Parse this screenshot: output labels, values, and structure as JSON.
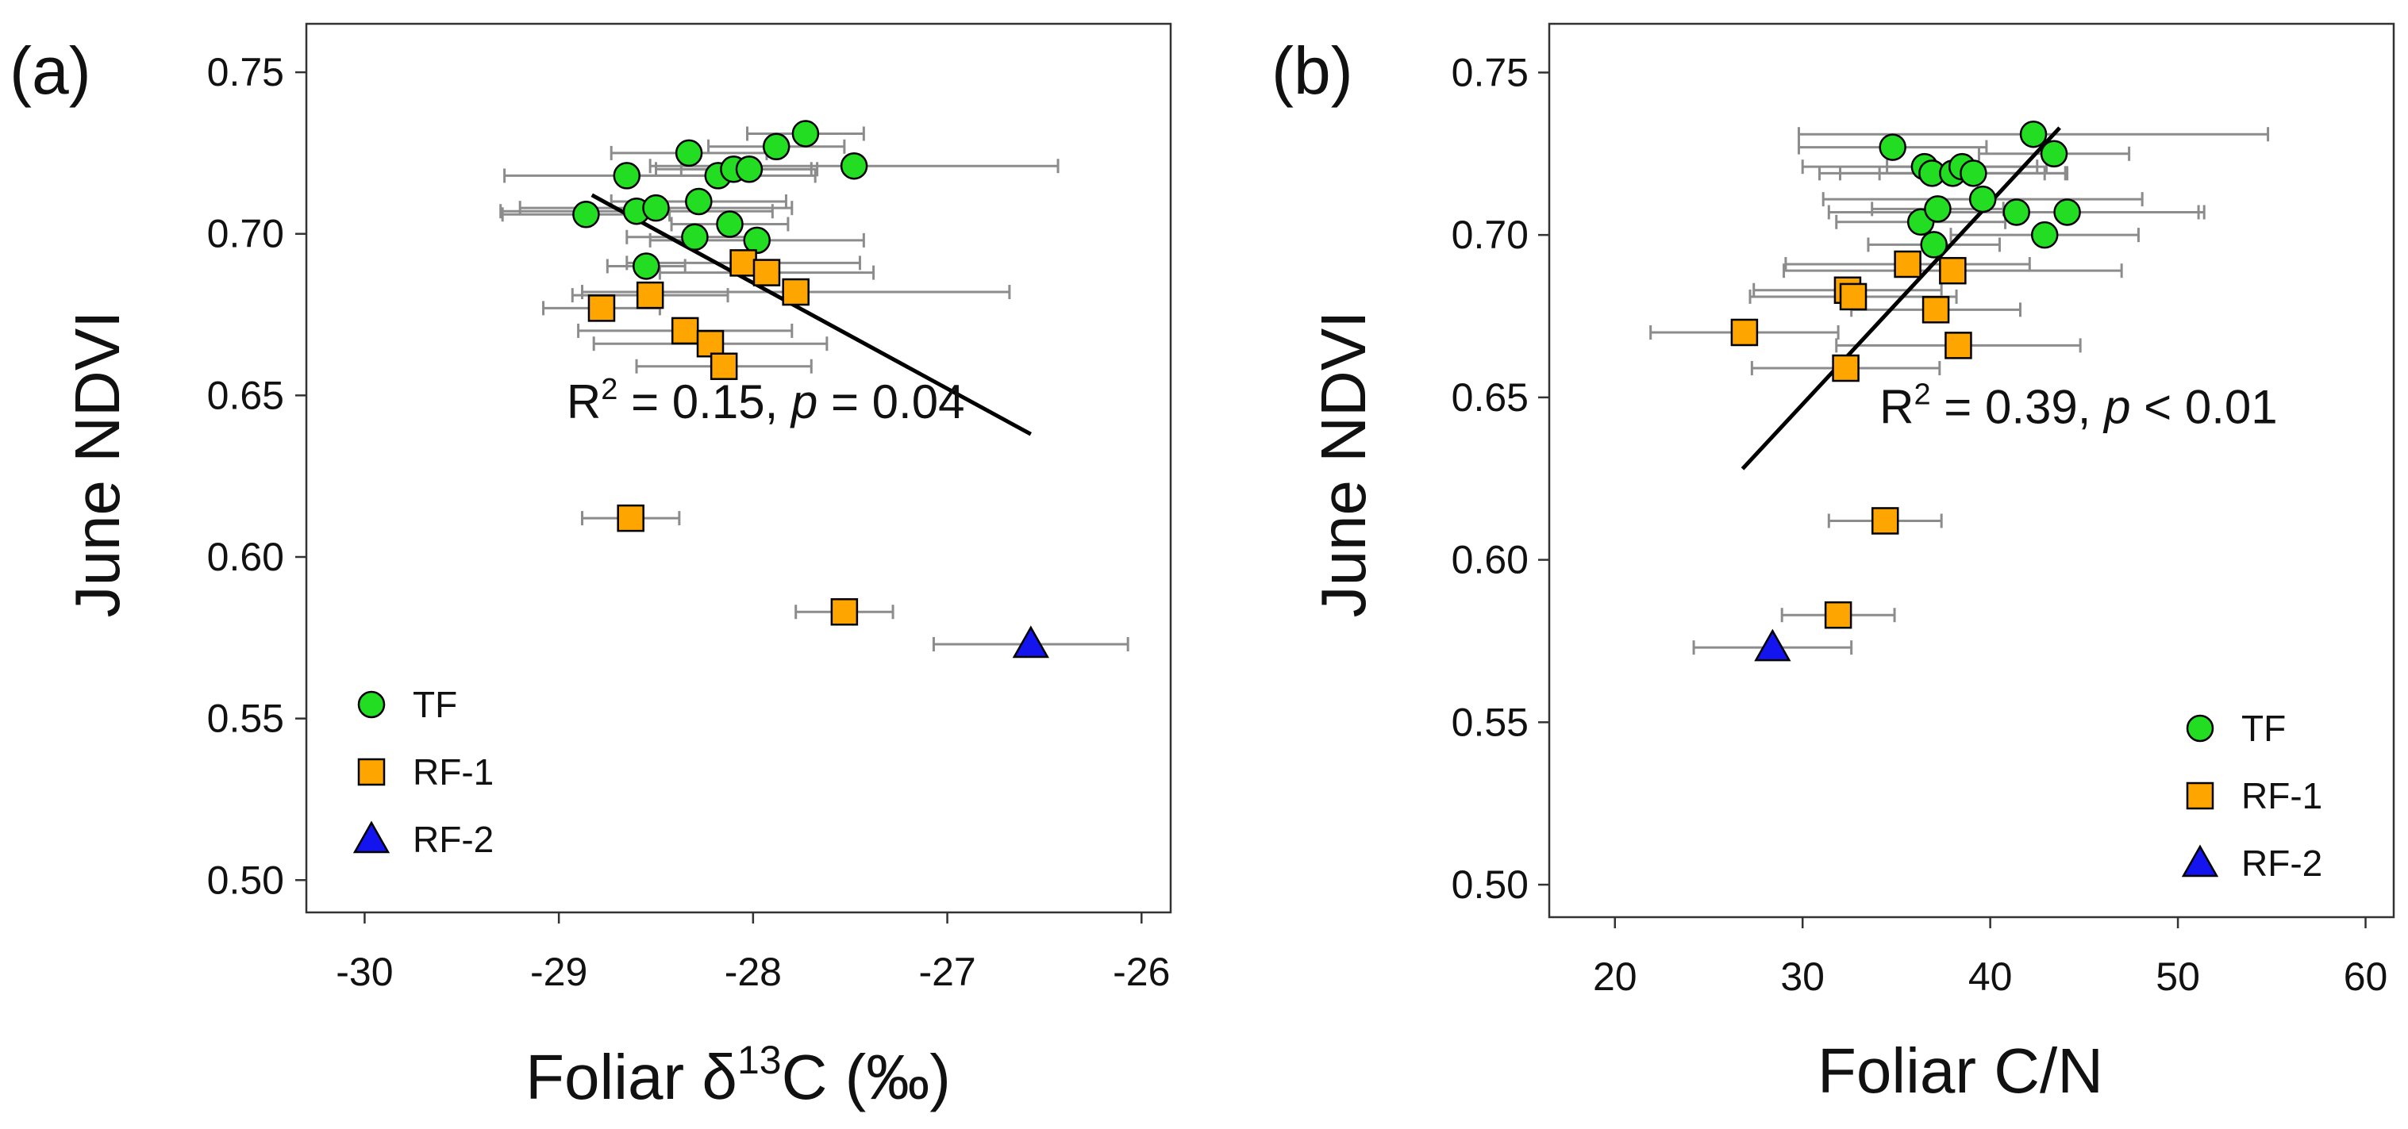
{
  "chart_data": [
    {
      "panel_label": "(a)",
      "type": "scatter",
      "xlabel": "Foliar δ¹³C (‰)",
      "xlabel_parts": {
        "before": "Foliar δ",
        "sup": "13",
        "after": "C (‰)"
      },
      "ylabel": "June NDVI",
      "xlim": [
        -30.3,
        -25.85
      ],
      "ylim": [
        0.49,
        0.765
      ],
      "xticks": [
        -30,
        -29,
        -28,
        -27,
        -26
      ],
      "xtick_labels": [
        "-30",
        "-29",
        "-28",
        "-27",
        "-26"
      ],
      "yticks": [
        0.5,
        0.55,
        0.6,
        0.65,
        0.7,
        0.75
      ],
      "ytick_labels": [
        "0.50",
        "0.55",
        "0.60",
        "0.65",
        "0.70",
        "0.75"
      ],
      "regression": {
        "x": [
          -28.83,
          -26.57
        ],
        "y": [
          0.712,
          0.638
        ]
      },
      "annotation": {
        "r2_prefix": "R",
        "r2_sup": "2",
        "r2_value": " = 0.15, ",
        "p_symbol": "p",
        "p_value": " = 0.04"
      },
      "annotation_pos": [
        -28.96,
        0.643
      ],
      "legend_position": "bottom-left",
      "series": [
        {
          "name": "TF",
          "marker": "circle",
          "color": "#22dd22",
          "points": [
            {
              "x": -28.86,
              "y": 0.706,
              "xerr": 0.43
            },
            {
              "x": -28.65,
              "y": 0.718,
              "xerr": 0.63
            },
            {
              "x": -28.6,
              "y": 0.707,
              "xerr": 0.7
            },
            {
              "x": -28.55,
              "y": 0.69,
              "xerr": 0.2
            },
            {
              "x": -28.5,
              "y": 0.708,
              "xerr": 0.7
            },
            {
              "x": -28.33,
              "y": 0.725,
              "xerr": 0.4
            },
            {
              "x": -28.3,
              "y": 0.699,
              "xerr": 0.35
            },
            {
              "x": -28.28,
              "y": 0.71,
              "xerr": 0.45
            },
            {
              "x": -28.18,
              "y": 0.718,
              "xerr": 0.5
            },
            {
              "x": -28.12,
              "y": 0.703,
              "xerr": 0.3
            },
            {
              "x": -28.1,
              "y": 0.72,
              "xerr": 0.4
            },
            {
              "x": -28.02,
              "y": 0.72,
              "xerr": 0.35
            },
            {
              "x": -27.98,
              "y": 0.698,
              "xerr": 0.55
            },
            {
              "x": -27.88,
              "y": 0.727,
              "xerr": 0.35
            },
            {
              "x": -27.73,
              "y": 0.731,
              "xerr": 0.3
            },
            {
              "x": -27.48,
              "y": 0.721,
              "xerr": 1.05
            }
          ]
        },
        {
          "name": "RF-1",
          "marker": "square",
          "color": "#ffa500",
          "points": [
            {
              "x": -28.78,
              "y": 0.677,
              "xerr": 0.3
            },
            {
              "x": -28.63,
              "y": 0.612,
              "xerr": 0.25
            },
            {
              "x": -28.53,
              "y": 0.681,
              "xerr": 0.4
            },
            {
              "x": -28.35,
              "y": 0.67,
              "xerr": 0.55
            },
            {
              "x": -28.22,
              "y": 0.666,
              "xerr": 0.6
            },
            {
              "x": -28.15,
              "y": 0.659,
              "xerr": 0.45
            },
            {
              "x": -28.05,
              "y": 0.691,
              "xerr": 0.6
            },
            {
              "x": -27.93,
              "y": 0.688,
              "xerr": 0.55
            },
            {
              "x": -27.78,
              "y": 0.682,
              "xerr": 1.1
            },
            {
              "x": -27.53,
              "y": 0.583,
              "xerr": 0.25
            }
          ]
        },
        {
          "name": "RF-2",
          "marker": "triangle",
          "color": "#1414ee",
          "points": [
            {
              "x": -26.57,
              "y": 0.573,
              "xerr": 0.5
            }
          ]
        }
      ]
    },
    {
      "panel_label": "(b)",
      "type": "scatter",
      "xlabel": "Foliar C/N",
      "ylabel": "June NDVI",
      "xlim": [
        16.5,
        61.5
      ],
      "ylim": [
        0.49,
        0.765
      ],
      "xticks": [
        20,
        30,
        40,
        50,
        60
      ],
      "xtick_labels": [
        "20",
        "30",
        "40",
        "50",
        "60"
      ],
      "yticks": [
        0.5,
        0.55,
        0.6,
        0.65,
        0.7,
        0.75
      ],
      "ytick_labels": [
        "0.50",
        "0.55",
        "0.60",
        "0.65",
        "0.70",
        "0.75"
      ],
      "regression": {
        "x": [
          26.8,
          43.7
        ],
        "y": [
          0.628,
          0.733
        ]
      },
      "annotation": {
        "r2_prefix": "R",
        "r2_sup": "2",
        "r2_value": " = 0.39, ",
        "p_symbol": "p",
        "p_value": " < 0.01"
      },
      "annotation_pos": [
        34.1,
        0.642
      ],
      "legend_position": "bottom-right",
      "series": [
        {
          "name": "TF",
          "marker": "circle",
          "color": "#22dd22",
          "points": [
            {
              "x": 34.8,
              "y": 0.727,
              "xerr": 5.0
            },
            {
              "x": 36.3,
              "y": 0.704,
              "xerr": 4.5
            },
            {
              "x": 36.5,
              "y": 0.721,
              "xerr": 6.5
            },
            {
              "x": 36.9,
              "y": 0.719,
              "xerr": 6.0
            },
            {
              "x": 37.0,
              "y": 0.697,
              "xerr": 3.5
            },
            {
              "x": 37.2,
              "y": 0.708,
              "xerr": 3.5
            },
            {
              "x": 38.0,
              "y": 0.719,
              "xerr": 6.0
            },
            {
              "x": 38.5,
              "y": 0.721,
              "xerr": 4.0
            },
            {
              "x": 39.1,
              "y": 0.719,
              "xerr": 5.0
            },
            {
              "x": 39.6,
              "y": 0.711,
              "xerr": 8.5
            },
            {
              "x": 41.4,
              "y": 0.707,
              "xerr": 10.0
            },
            {
              "x": 42.3,
              "y": 0.731,
              "xerr": 12.5
            },
            {
              "x": 42.9,
              "y": 0.7,
              "xerr": 5.0
            },
            {
              "x": 43.4,
              "y": 0.725,
              "xerr": 4.0
            },
            {
              "x": 44.1,
              "y": 0.707,
              "xerr": 7.0
            }
          ]
        },
        {
          "name": "RF-1",
          "marker": "square",
          "color": "#ffa500",
          "points": [
            {
              "x": 26.9,
              "y": 0.67,
              "xerr": 5.0
            },
            {
              "x": 31.9,
              "y": 0.583,
              "xerr": 3.0
            },
            {
              "x": 32.3,
              "y": 0.659,
              "xerr": 5.0
            },
            {
              "x": 32.4,
              "y": 0.683,
              "xerr": 5.0
            },
            {
              "x": 32.7,
              "y": 0.681,
              "xerr": 5.5
            },
            {
              "x": 34.4,
              "y": 0.612,
              "xerr": 3.0
            },
            {
              "x": 35.6,
              "y": 0.691,
              "xerr": 6.5
            },
            {
              "x": 37.1,
              "y": 0.677,
              "xerr": 4.5
            },
            {
              "x": 38.0,
              "y": 0.689,
              "xerr": 9.0
            },
            {
              "x": 38.3,
              "y": 0.666,
              "xerr": 6.5
            }
          ]
        },
        {
          "name": "RF-2",
          "marker": "triangle",
          "color": "#1414ee",
          "points": [
            {
              "x": 28.4,
              "y": 0.573,
              "xerr": 4.2
            }
          ]
        }
      ]
    }
  ]
}
